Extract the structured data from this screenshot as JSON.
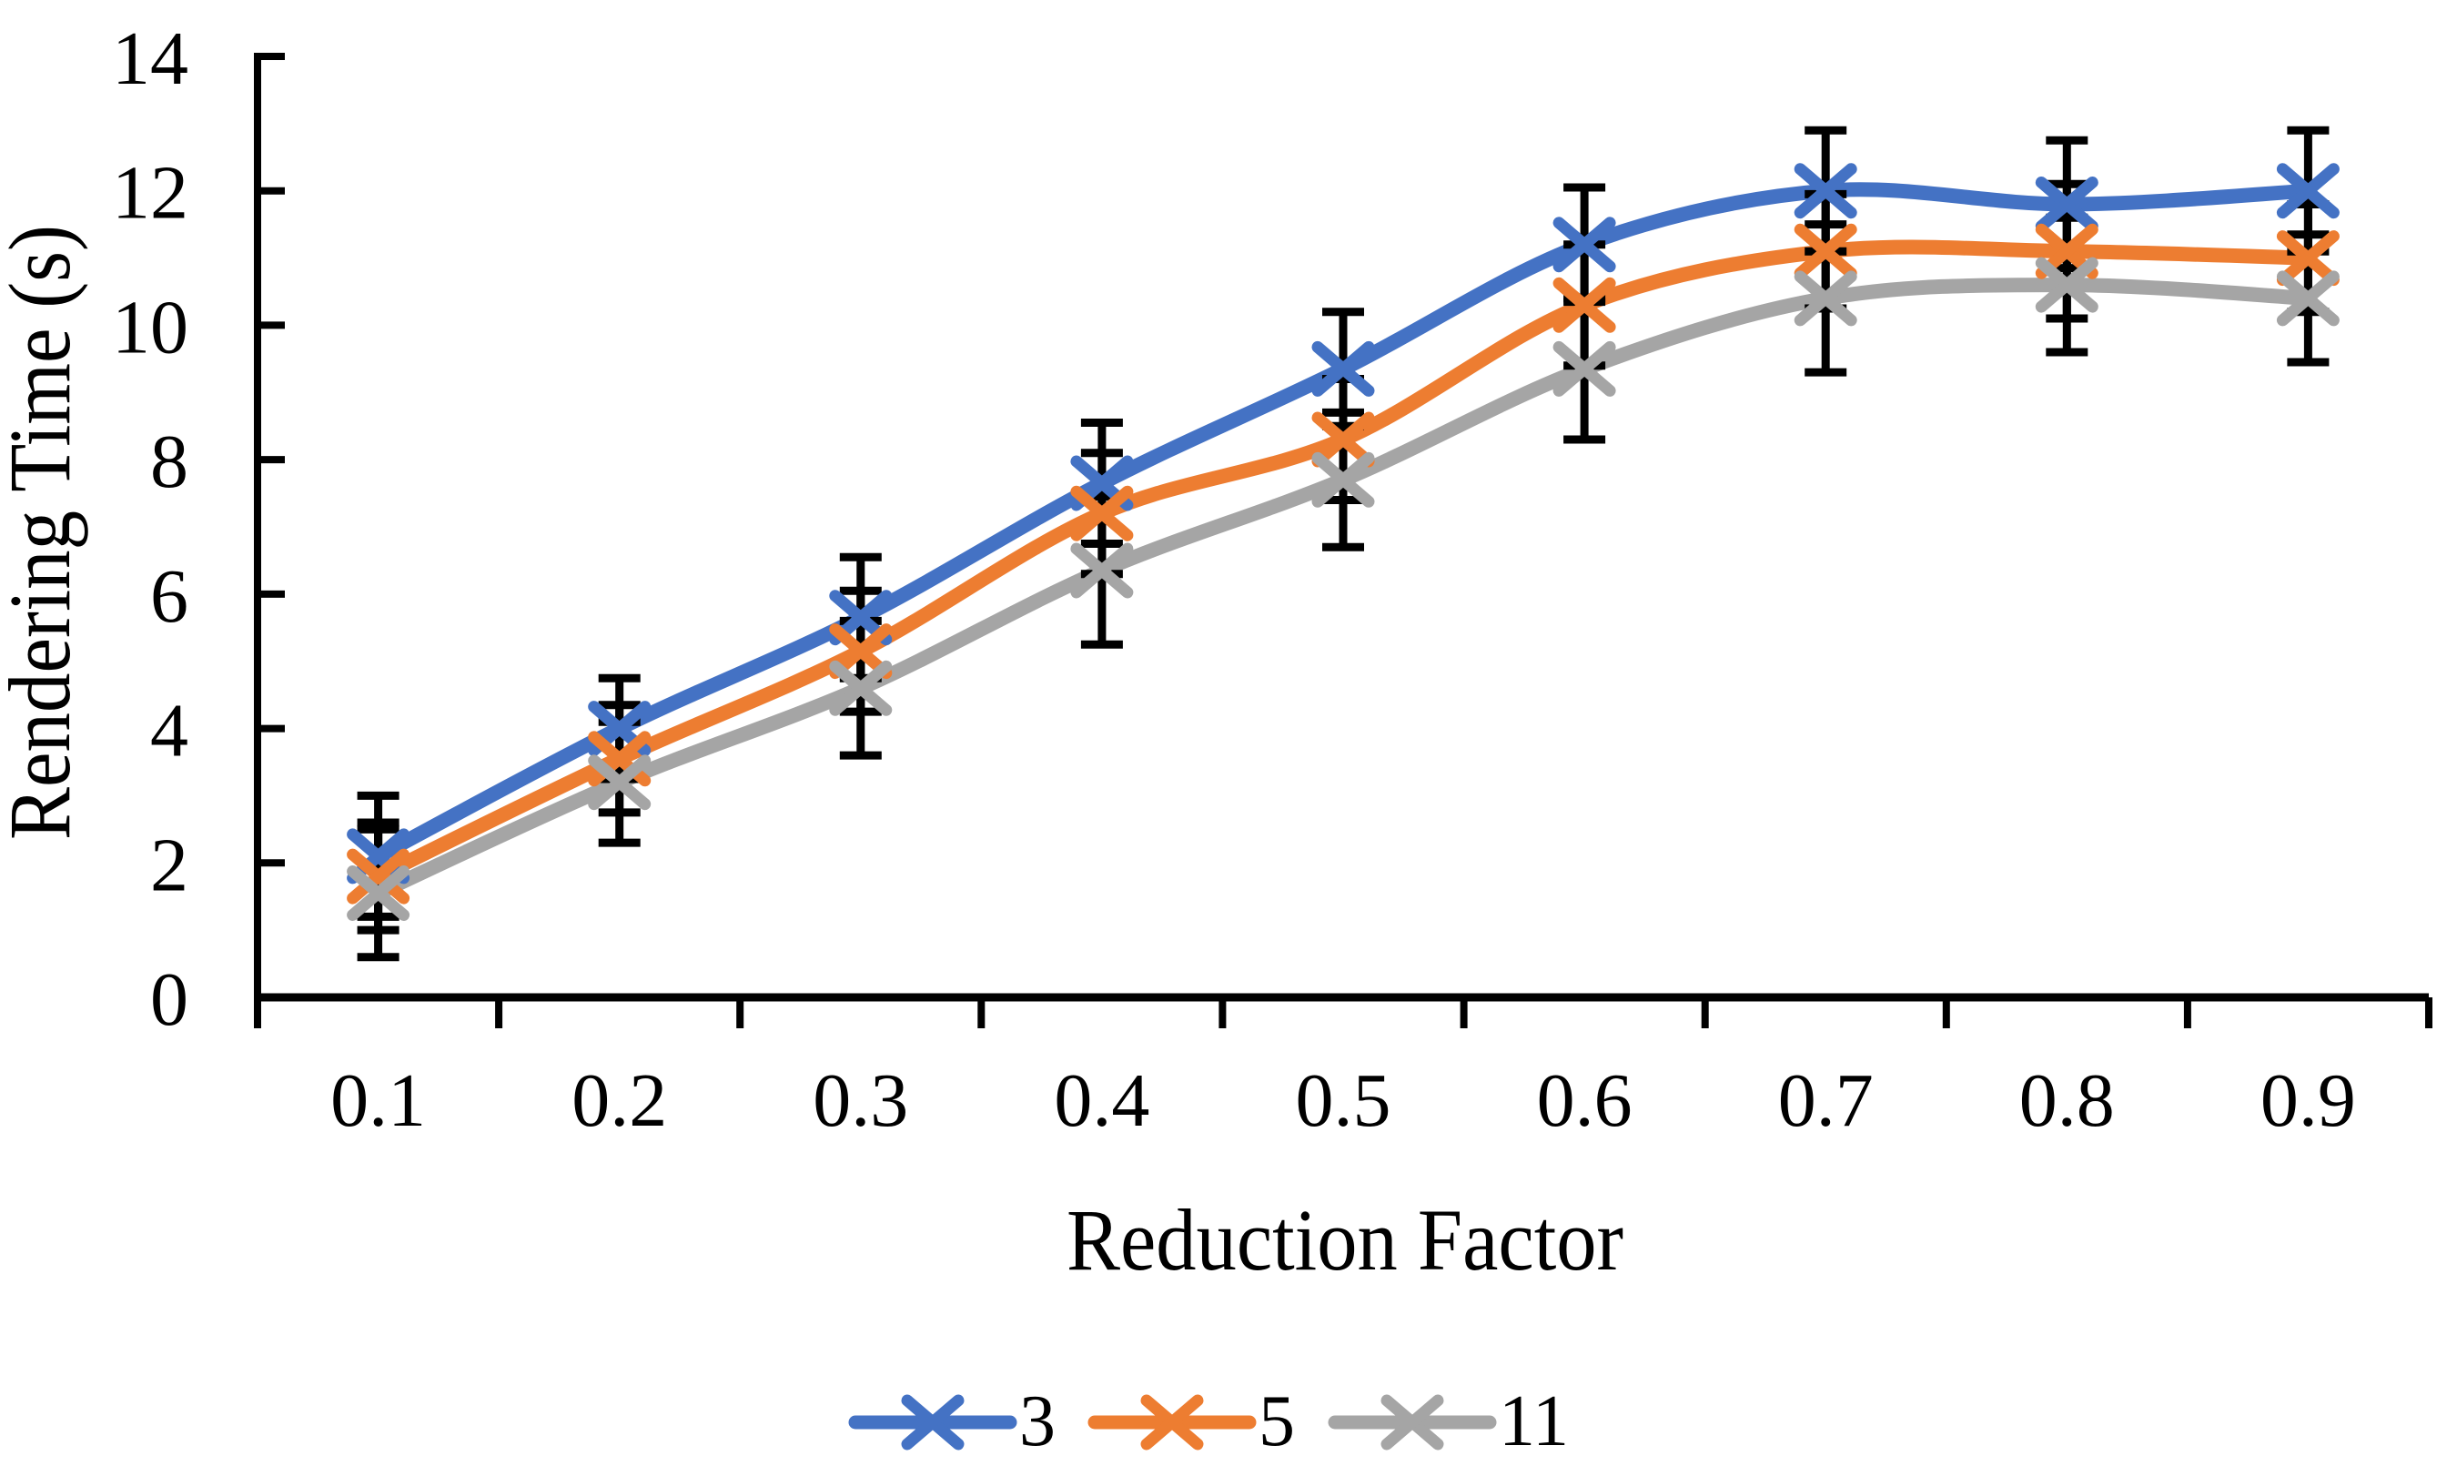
{
  "figure": {
    "background": "#ffffff",
    "text_color": "#000000"
  },
  "chart_data": {
    "type": "line",
    "title": "",
    "xlabel": "Reduction Factor",
    "ylabel": "Rendering Time (s)",
    "categories": [
      0.1,
      0.2,
      0.3,
      0.4,
      0.5,
      0.6,
      0.7,
      0.8,
      0.9
    ],
    "x_tick_labels": [
      "0.1",
      "0.2",
      "0.3",
      "0.4",
      "0.5",
      "0.6",
      "0.7",
      "0.8",
      "0.9"
    ],
    "y_ticks": [
      0,
      2,
      4,
      6,
      8,
      10,
      12,
      14
    ],
    "ylim": [
      0,
      14
    ],
    "grid": false,
    "marker": "x",
    "line_smoothing": true,
    "error_bars": true,
    "error_bar_color": "#000000",
    "axis_color": "#000000",
    "legend_position": "bottom",
    "series": [
      {
        "name": "3",
        "color": "#4472C4",
        "values": [
          2.1,
          4.0,
          5.65,
          7.65,
          9.35,
          11.2,
          12.0,
          11.8,
          12.0
        ],
        "errors": [
          0.9,
          0.75,
          0.9,
          0.9,
          0.85,
          0.85,
          0.9,
          0.95,
          0.9
        ]
      },
      {
        "name": "5",
        "color": "#ED7D31",
        "values": [
          1.8,
          3.55,
          5.15,
          7.2,
          8.3,
          10.3,
          11.1,
          11.1,
          11.0
        ],
        "errors": [
          0.8,
          0.8,
          0.9,
          0.9,
          0.9,
          0.9,
          0.85,
          1.0,
          0.8
        ]
      },
      {
        "name": "11",
        "color": "#A5A5A5",
        "values": [
          1.55,
          3.2,
          4.6,
          6.35,
          7.7,
          9.35,
          10.4,
          10.6,
          10.4
        ],
        "errors": [
          0.95,
          0.9,
          1.0,
          1.1,
          1.0,
          1.05,
          1.1,
          1.0,
          0.95
        ]
      }
    ]
  }
}
